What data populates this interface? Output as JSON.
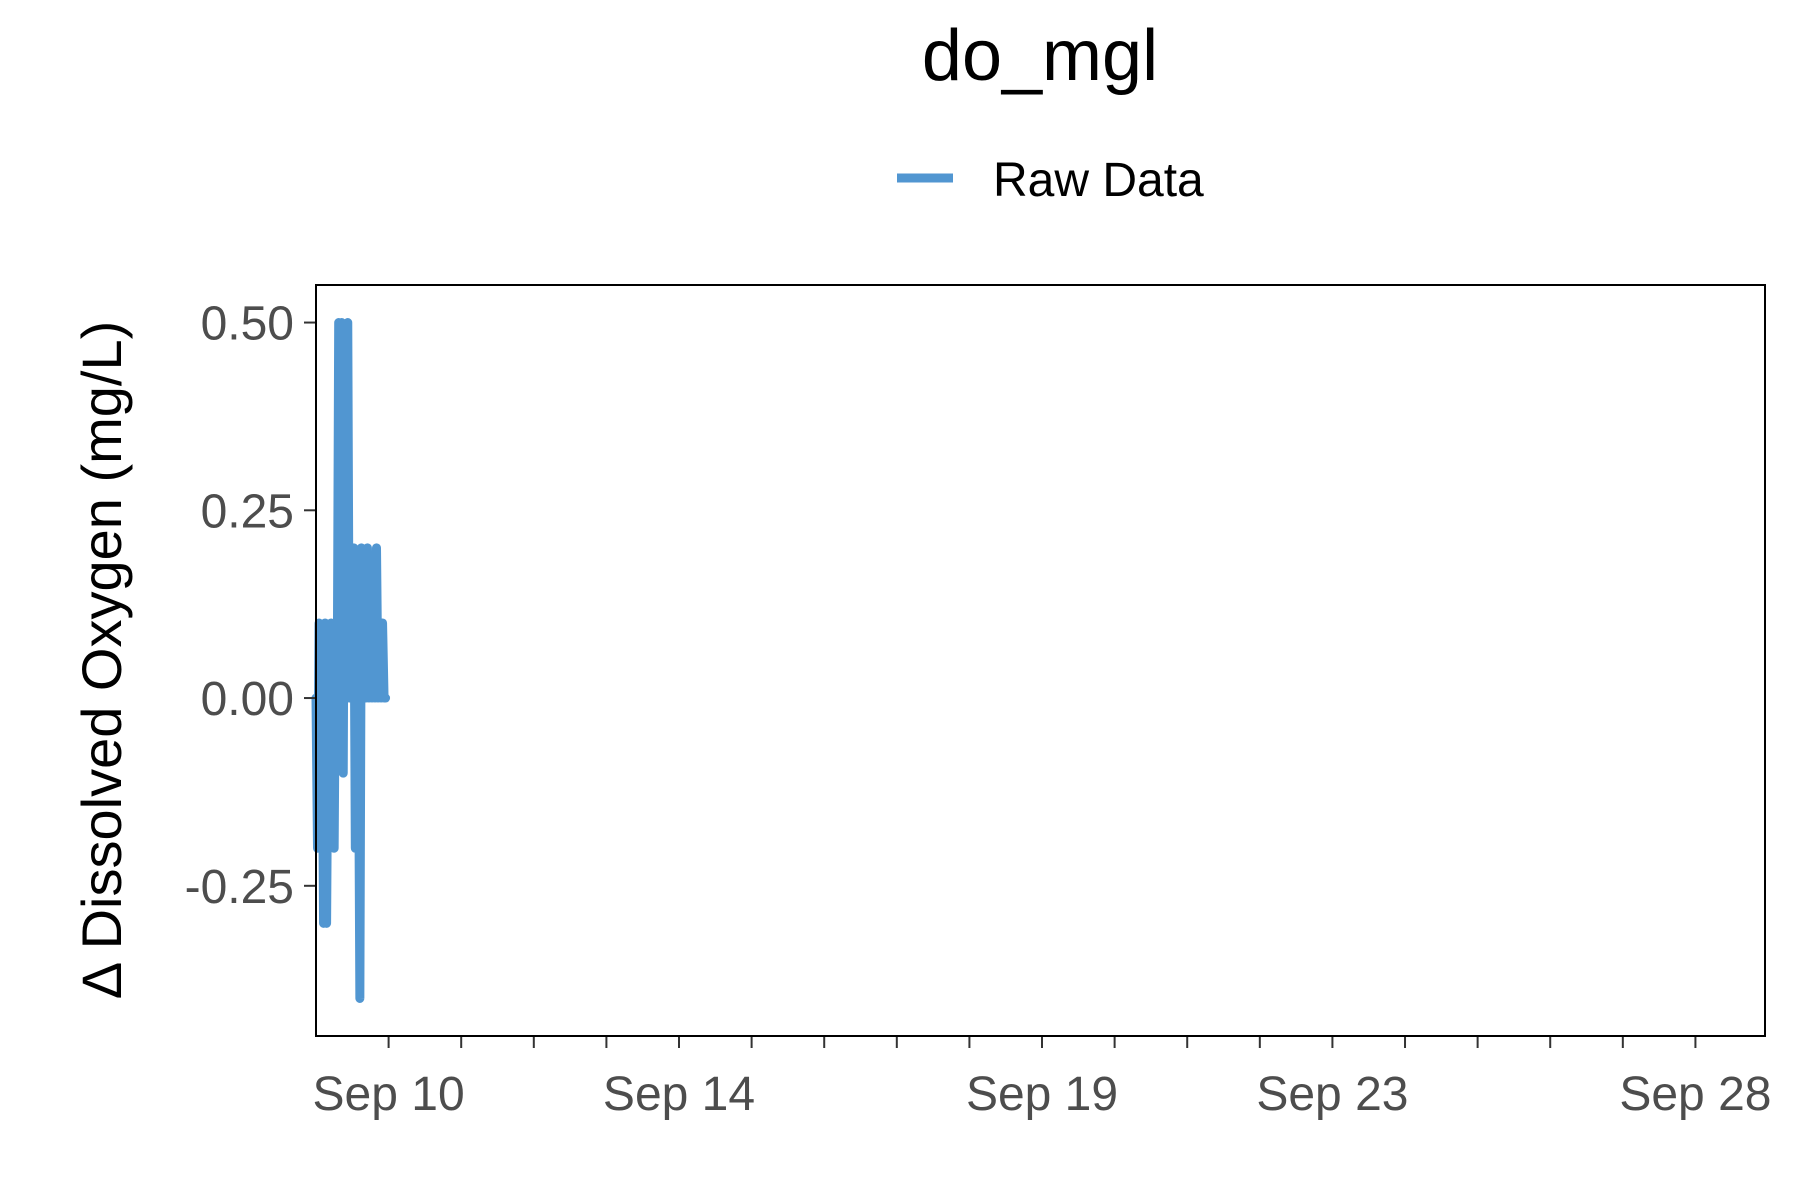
{
  "chart_data": {
    "type": "line",
    "title": "do_mgl",
    "xlabel": "",
    "ylabel": "Δ Dissolved Oxygen (mg/L)",
    "legend": {
      "position": "top",
      "entries": [
        "Raw Data"
      ]
    },
    "grid": false,
    "colors": {
      "series": "#5196d1",
      "axis": "#000000",
      "tick_label": "#4d4d4d"
    },
    "xlim": [
      "2023-09-09T00:00",
      "2023-09-28T23:00"
    ],
    "ylim": [
      -0.45,
      0.55
    ],
    "x_major_ticks": [
      {
        "date": "2023-09-10",
        "label": "Sep 10"
      },
      {
        "date": "2023-09-14",
        "label": "Sep 14"
      },
      {
        "date": "2023-09-19",
        "label": "Sep 19"
      },
      {
        "date": "2023-09-23",
        "label": "Sep 23"
      },
      {
        "date": "2023-09-28",
        "label": "Sep 28"
      }
    ],
    "x_minor_ticks": [
      "2023-09-11",
      "2023-09-12",
      "2023-09-13",
      "2023-09-15",
      "2023-09-16",
      "2023-09-17",
      "2023-09-18",
      "2023-09-20",
      "2023-09-21",
      "2023-09-22",
      "2023-09-24",
      "2023-09-25",
      "2023-09-26",
      "2023-09-27"
    ],
    "y_ticks": [
      {
        "value": -0.25,
        "label": "-0.25"
      },
      {
        "value": 0.0,
        "label": "0.00"
      },
      {
        "value": 0.25,
        "label": "0.25"
      },
      {
        "value": 0.5,
        "label": "0.50"
      }
    ],
    "series": [
      {
        "name": "Raw Data",
        "x": [
          "2023-09-09T00:00",
          "2023-09-09T00:30",
          "2023-09-09T01:00",
          "2023-09-09T01:30",
          "2023-09-09T02:00",
          "2023-09-09T02:30",
          "2023-09-09T03:00",
          "2023-09-09T03:30",
          "2023-09-09T04:00",
          "2023-09-09T04:30",
          "2023-09-09T05:00",
          "2023-09-09T05:30",
          "2023-09-09T06:00",
          "2023-09-09T06:30",
          "2023-09-09T07:00",
          "2023-09-09T07:30",
          "2023-09-09T08:00",
          "2023-09-09T08:30",
          "2023-09-09T09:00",
          "2023-09-09T09:30",
          "2023-09-09T10:00",
          "2023-09-09T10:30",
          "2023-09-09T11:00",
          "2023-09-09T11:30",
          "2023-09-09T12:00",
          "2023-09-09T12:30",
          "2023-09-09T13:00",
          "2023-09-09T13:30",
          "2023-09-09T14:00",
          "2023-09-09T14:30",
          "2023-09-09T15:00",
          "2023-09-09T15:30",
          "2023-09-09T16:00",
          "2023-09-09T16:30",
          "2023-09-09T17:00",
          "2023-09-09T17:30",
          "2023-09-09T18:00",
          "2023-09-09T18:30",
          "2023-09-09T19:00",
          "2023-09-09T19:30",
          "2023-09-09T20:00",
          "2023-09-09T20:30",
          "2023-09-09T21:00",
          "2023-09-09T21:30",
          "2023-09-09T22:00",
          "2023-09-09T22:30",
          "2023-09-09T23:00"
        ],
        "y": [
          0.0,
          -0.2,
          0.1,
          -0.1,
          0.0,
          -0.3,
          0.1,
          -0.3,
          0.0,
          -0.2,
          0.1,
          0.0,
          -0.2,
          0.1,
          0.0,
          0.5,
          0.0,
          0.5,
          -0.1,
          0.4,
          0.0,
          0.5,
          0.0,
          0.1,
          0.0,
          0.2,
          -0.2,
          0.1,
          0.0,
          -0.4,
          0.2,
          0.0,
          0.1,
          0.0,
          0.2,
          0.0,
          0.1,
          0.0,
          0.1,
          0.0,
          0.2,
          0.0,
          0.1,
          0.0,
          0.1,
          0.0,
          0.0
        ]
      }
    ]
  }
}
